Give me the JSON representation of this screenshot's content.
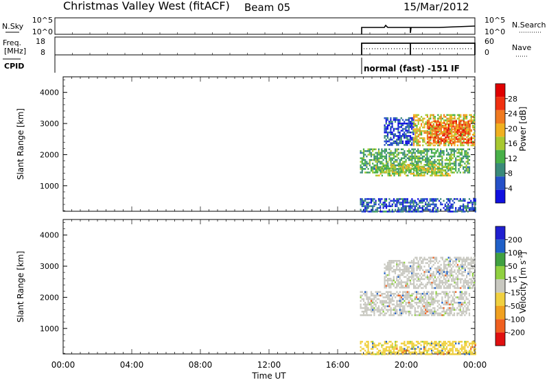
{
  "title": "Christmas Valley West (fitACF)",
  "beam": "Beam 05",
  "date": "15/Mar/2012",
  "strip_labels": {
    "nsky": "N.Sky",
    "freq_line1": "Freq.",
    "freq_line2": "[MHz]",
    "cpid": "CPID",
    "nsearch": "N.Search",
    "nave": "Nave"
  },
  "strip_ticks": {
    "nsky_top": "10^5",
    "nsky_bottom": "10^0",
    "nsearch_top": "10^5",
    "nsearch_bottom": "10^0",
    "freq_top": "18",
    "freq_bottom": "8",
    "nave_top": "60",
    "nave_bottom": "0"
  },
  "cpid_text": "normal (fast) -151 IF",
  "x_axis": {
    "label": "Time UT",
    "ticks": [
      "00:00",
      "04:00",
      "08:00",
      "12:00",
      "16:00",
      "20:00",
      "00:00"
    ]
  },
  "colors": {
    "power": [
      "#1010e0",
      "#2550c8",
      "#3a8a7a",
      "#48b048",
      "#a8c830",
      "#f0b020",
      "#f07a20",
      "#f03010",
      "#e00000"
    ],
    "velocity": [
      "#2020d0",
      "#2060c8",
      "#40a040",
      "#90d040",
      "#c8c8c0",
      "#f0d040",
      "#f0a020",
      "#f06020",
      "#e01010"
    ]
  },
  "chart_data": [
    {
      "type": "heatmap",
      "panel": "power",
      "x_range_hours": [
        0,
        24
      ],
      "ylim": [
        180,
        4500
      ],
      "ylabel": "Slant Range [km]",
      "y_ticks": [
        1000,
        2000,
        3000,
        4000
      ],
      "colorbar": {
        "label": "Power [dB]",
        "range": [
          0,
          32
        ],
        "ticks": [
          4,
          8,
          12,
          16,
          20,
          24,
          28
        ]
      },
      "regions": [
        {
          "t_start": 17.3,
          "t_end": 24.0,
          "range_start": 180,
          "range_end": 600,
          "level_db": 6
        },
        {
          "t_start": 17.3,
          "t_end": 23.7,
          "range_start": 1400,
          "range_end": 2200,
          "level_db": 12
        },
        {
          "t_start": 18.2,
          "t_end": 22.6,
          "range_start": 1350,
          "range_end": 1700,
          "level_db": 16
        },
        {
          "t_start": 18.7,
          "t_end": 20.4,
          "range_start": 2300,
          "range_end": 3200,
          "level_db": 5
        },
        {
          "t_start": 20.4,
          "t_end": 24.0,
          "range_start": 2300,
          "range_end": 3300,
          "level_db": 18
        },
        {
          "t_start": 21.2,
          "t_end": 23.8,
          "range_start": 2400,
          "range_end": 3100,
          "level_db": 25
        }
      ]
    },
    {
      "type": "heatmap",
      "panel": "velocity",
      "x_range_hours": [
        0,
        24
      ],
      "ylim": [
        180,
        4500
      ],
      "ylabel": "Slant Range [km]",
      "y_ticks": [
        1000,
        2000,
        3000,
        4000
      ],
      "colorbar": {
        "label": "Velocity [m s^-1]",
        "range": [
          -250,
          250
        ],
        "ticks": [
          200,
          100,
          50,
          15,
          -15,
          -50,
          -100,
          -200
        ]
      },
      "regions": [
        {
          "t_start": 17.3,
          "t_end": 24.0,
          "range_start": 180,
          "range_end": 600,
          "velocity_ms": -30
        },
        {
          "t_start": 17.3,
          "t_end": 23.7,
          "range_start": 1400,
          "range_end": 2200,
          "velocity_ms": 0
        },
        {
          "t_start": 18.7,
          "t_end": 20.4,
          "range_start": 2300,
          "range_end": 3200,
          "velocity_ms": 0
        },
        {
          "t_start": 20.4,
          "t_end": 24.0,
          "range_start": 2300,
          "range_end": 3300,
          "velocity_ms": 0
        }
      ]
    }
  ]
}
